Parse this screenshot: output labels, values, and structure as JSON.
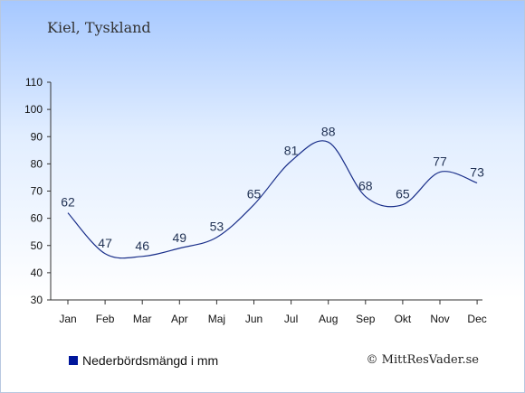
{
  "title": "Kiel, Tyskland",
  "chart_data": {
    "type": "line",
    "categories": [
      "Jan",
      "Feb",
      "Mar",
      "Apr",
      "Maj",
      "Jun",
      "Jul",
      "Aug",
      "Sep",
      "Okt",
      "Nov",
      "Dec"
    ],
    "values": [
      62,
      47,
      46,
      49,
      53,
      65,
      81,
      88,
      68,
      65,
      77,
      73
    ],
    "ylim": [
      30,
      110
    ],
    "yticks": [
      30,
      40,
      50,
      60,
      70,
      80,
      90,
      100,
      110
    ],
    "legend": "Nederbördsmängd i mm",
    "legend_position": "bottom-left",
    "grid": false,
    "line_color": "#1a2f8a",
    "legend_color": "#00169b"
  },
  "copyright": "© MittResVader.se"
}
